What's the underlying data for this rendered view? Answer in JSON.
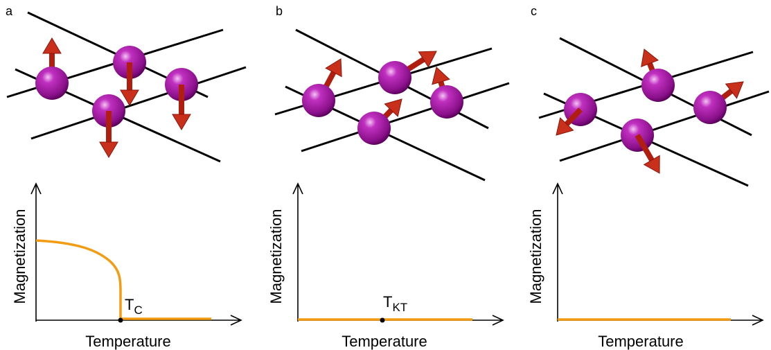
{
  "panels": [
    {
      "label": "a",
      "y_label": "Magnetization",
      "x_label": "Temperature",
      "transition": {
        "main": "T",
        "sub": "C"
      }
    },
    {
      "label": "b",
      "y_label": "Magnetization",
      "x_label": "Temperature",
      "transition": {
        "main": "T",
        "sub": "KT"
      }
    },
    {
      "label": "c",
      "y_label": "Magnetization",
      "x_label": "Temperature"
    }
  ]
}
